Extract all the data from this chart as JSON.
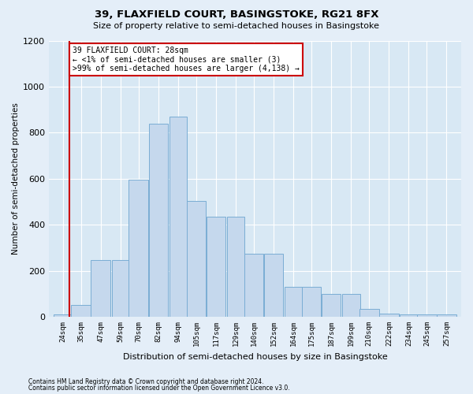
{
  "title": "39, FLAXFIELD COURT, BASINGSTOKE, RG21 8FX",
  "subtitle": "Size of property relative to semi-detached houses in Basingstoke",
  "xlabel": "Distribution of semi-detached houses by size in Basingstoke",
  "ylabel": "Number of semi-detached properties",
  "footer1": "Contains HM Land Registry data © Crown copyright and database right 2024.",
  "footer2": "Contains public sector information licensed under the Open Government Licence v3.0.",
  "annotation_line1": "39 FLAXFIELD COURT: 28sqm",
  "annotation_line2": "← <1% of semi-detached houses are smaller (3)",
  "annotation_line3": ">99% of semi-detached houses are larger (4,138) →",
  "property_size": 28,
  "bin_centers": [
    24,
    35,
    47,
    59,
    70,
    82,
    94,
    105,
    117,
    129,
    140,
    152,
    164,
    175,
    187,
    199,
    210,
    222,
    234,
    245,
    257
  ],
  "bin_labels": [
    "24sqm",
    "35sqm",
    "47sqm",
    "59sqm",
    "70sqm",
    "82sqm",
    "94sqm",
    "105sqm",
    "117sqm",
    "129sqm",
    "140sqm",
    "152sqm",
    "164sqm",
    "175sqm",
    "187sqm",
    "199sqm",
    "210sqm",
    "222sqm",
    "234sqm",
    "245sqm",
    "257sqm"
  ],
  "bar_values": [
    10,
    50,
    245,
    245,
    595,
    840,
    870,
    505,
    435,
    435,
    275,
    275,
    130,
    130,
    100,
    100,
    35,
    15,
    10,
    10,
    10
  ],
  "bar_face_color": "#c5d8ed",
  "bar_edge_color": "#7aadd4",
  "bg_color": "#e4eef8",
  "plot_bg_color": "#d8e8f4",
  "grid_color": "#ffffff",
  "annotation_box_edgecolor": "#cc0000",
  "vline_color": "#cc0000",
  "ylim": [
    0,
    1200
  ],
  "yticks": [
    0,
    200,
    400,
    600,
    800,
    1000,
    1200
  ]
}
